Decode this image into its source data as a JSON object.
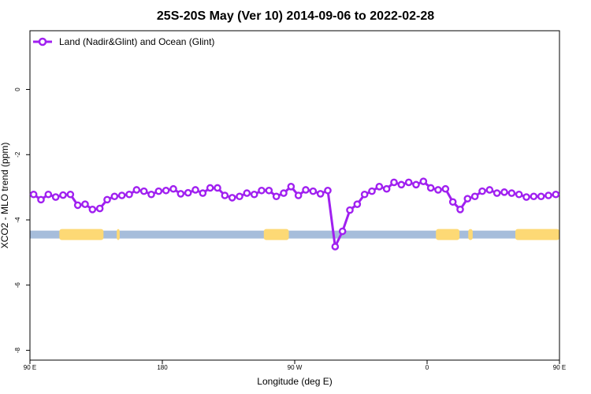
{
  "chart_data": {
    "type": "line",
    "title": "25S-20S May (Ver 10)   2014-09-06 to 2022-02-28",
    "xlabel": "Longitude (deg E)",
    "ylabel": "XCO2 - MLO trend (ppm)",
    "xlim": [
      90,
      450
    ],
    "ylim": [
      -8.3,
      1.8
    ],
    "x_ticks": [
      {
        "value": 90,
        "label": "90 E"
      },
      {
        "value": 180,
        "label": "180"
      },
      {
        "value": 270,
        "label": "90 W"
      },
      {
        "value": 360,
        "label": "0"
      },
      {
        "value": 450,
        "label": "90 E"
      }
    ],
    "y_ticks": [
      {
        "value": 0,
        "label": "0"
      },
      {
        "value": -2,
        "label": "-2"
      },
      {
        "value": -4,
        "label": "-4"
      },
      {
        "value": -6,
        "label": "-6"
      },
      {
        "value": -8,
        "label": "-8"
      }
    ],
    "grid": false,
    "legend_position": "top-left",
    "series": [
      {
        "name": "Land (Nadir&Glint) and Ocean (Glint)",
        "color": "#a020f0",
        "x": [
          92.5,
          97.5,
          102.5,
          107.5,
          112.5,
          117.5,
          122.5,
          127.5,
          132.5,
          137.5,
          142.5,
          147.5,
          152.5,
          157.5,
          162.5,
          167.5,
          172.5,
          177.5,
          182.5,
          187.5,
          192.5,
          197.5,
          202.5,
          207.5,
          212.5,
          217.5,
          222.5,
          227.5,
          232.5,
          237.5,
          242.5,
          247.5,
          252.5,
          257.5,
          262.5,
          267.5,
          272.5,
          277.5,
          282.5,
          287.5,
          292.5,
          297.5,
          302.5,
          307.5,
          312.5,
          317.5,
          322.5,
          327.5,
          332.5,
          337.5,
          342.5,
          347.5,
          352.5,
          357.5,
          362.5,
          367.5,
          372.5,
          377.5,
          382.5,
          387.5,
          392.5,
          397.5,
          402.5,
          407.5,
          412.5,
          417.5,
          422.5,
          427.5,
          432.5,
          437.5,
          442.5,
          447.5
        ],
        "values": [
          -3.22,
          -3.38,
          -3.22,
          -3.3,
          -3.24,
          -3.22,
          -3.55,
          -3.52,
          -3.68,
          -3.65,
          -3.38,
          -3.28,
          -3.25,
          -3.22,
          -3.08,
          -3.12,
          -3.22,
          -3.12,
          -3.1,
          -3.05,
          -3.2,
          -3.17,
          -3.08,
          -3.18,
          -3.02,
          -3.02,
          -3.25,
          -3.32,
          -3.28,
          -3.18,
          -3.22,
          -3.1,
          -3.1,
          -3.28,
          -3.18,
          -2.98,
          -3.25,
          -3.08,
          -3.12,
          -3.2,
          -3.1,
          -4.82,
          -4.35,
          -3.7,
          -3.52,
          -3.22,
          -3.12,
          -2.98,
          -3.05,
          -2.85,
          -2.92,
          -2.85,
          -2.92,
          -2.82,
          -3.02,
          -3.08,
          -3.05,
          -3.45,
          -3.68,
          -3.35,
          -3.28,
          -3.12,
          -3.08,
          -3.18,
          -3.15,
          -3.18,
          -3.22,
          -3.3,
          -3.28,
          -3.28,
          -3.25,
          -3.22
        ]
      }
    ],
    "landmask": {
      "y": -4.45,
      "ocean_color": "#a6bddb",
      "land_color": "#fdd975",
      "land_segments": [
        [
          110,
          140
        ],
        [
          149,
          151
        ],
        [
          249,
          266
        ],
        [
          366,
          382
        ],
        [
          388,
          391
        ],
        [
          420,
          450
        ]
      ]
    }
  }
}
